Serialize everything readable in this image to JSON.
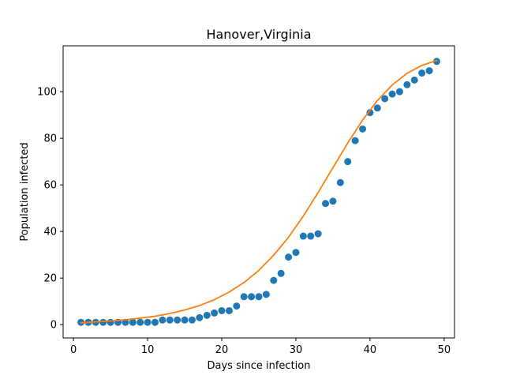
{
  "chart_data": {
    "type": "scatter",
    "title": "Hanover,Virginia",
    "xlabel": "Days since infection",
    "ylabel": "Population infected",
    "xlim": [
      -1.4,
      51.4
    ],
    "ylim": [
      -5.7,
      119.7
    ],
    "xticks": [
      0,
      10,
      20,
      30,
      40,
      50
    ],
    "yticks": [
      0,
      20,
      40,
      60,
      80,
      100
    ],
    "grid": false,
    "series": [
      {
        "kind": "points",
        "color": "#1f77b4",
        "x": [
          1,
          2,
          3,
          4,
          5,
          6,
          7,
          8,
          9,
          10,
          11,
          12,
          13,
          14,
          15,
          16,
          17,
          18,
          19,
          20,
          21,
          22,
          23,
          24,
          25,
          26,
          27,
          28,
          29,
          30,
          31,
          32,
          33,
          34,
          35,
          36,
          37,
          38,
          39,
          40,
          41,
          42,
          43,
          44,
          45,
          46,
          47,
          48,
          49
        ],
        "y": [
          1,
          1,
          1,
          1,
          1,
          1,
          1,
          1,
          1,
          1,
          1,
          2,
          2,
          2,
          2,
          2,
          3,
          4,
          5,
          6,
          6,
          8,
          12,
          12,
          12,
          13,
          19,
          22,
          29,
          31,
          38,
          38,
          39,
          52,
          53,
          61,
          70,
          79,
          84,
          91,
          93,
          97,
          99,
          100,
          103,
          105,
          108,
          109,
          113
        ]
      },
      {
        "kind": "curve",
        "color": "#ff7f0e",
        "x": [
          1,
          3,
          5,
          7,
          9,
          11,
          13,
          15,
          17,
          19,
          21,
          23,
          25,
          27,
          29,
          31,
          33,
          35,
          37,
          39,
          41,
          43,
          45,
          47,
          49
        ],
        "y": [
          0.8,
          1.2,
          1.6,
          2.1,
          2.8,
          3.6,
          4.8,
          6.3,
          8.2,
          10.7,
          14.0,
          18.1,
          23.3,
          29.8,
          37.5,
          46.6,
          56.7,
          67.4,
          78.0,
          87.8,
          96.2,
          102.9,
          107.9,
          111.3,
          113.4
        ]
      }
    ]
  }
}
